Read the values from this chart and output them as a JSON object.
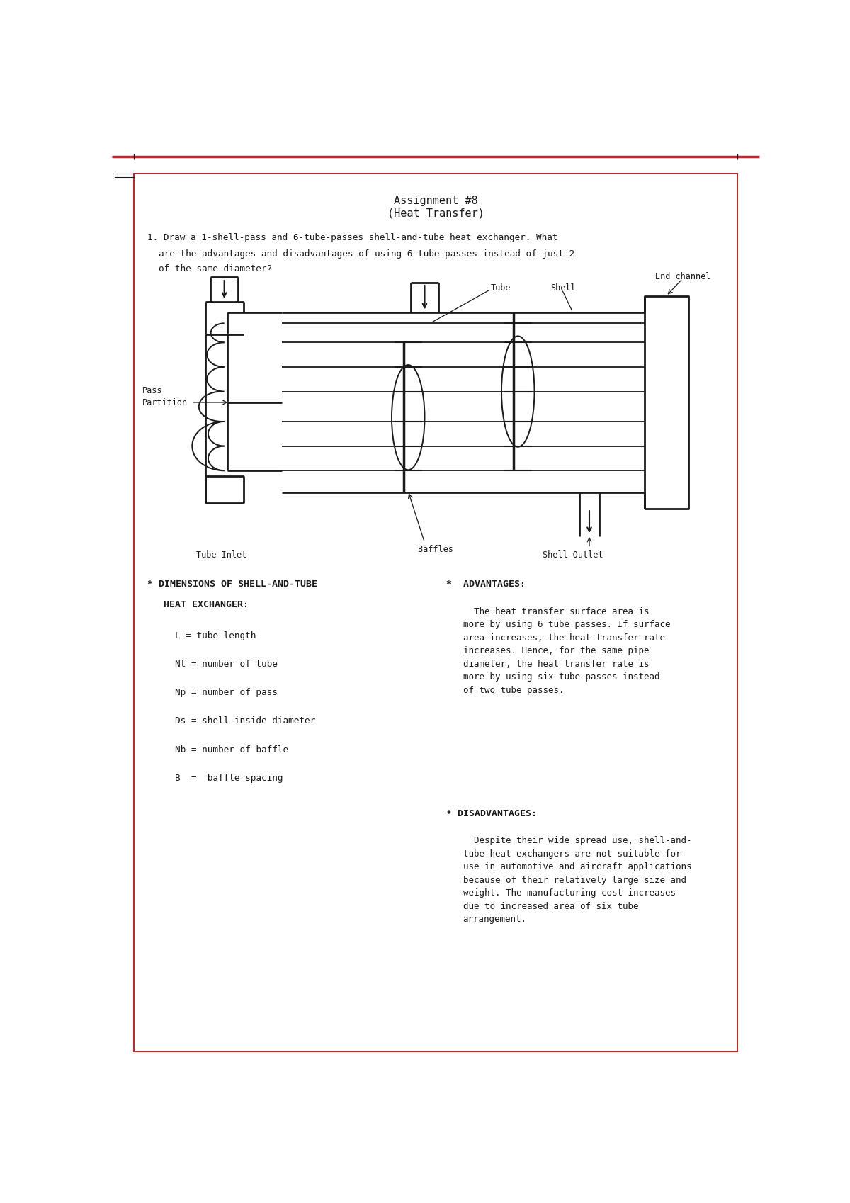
{
  "page_bg": "#ffffff",
  "border_color": "#c0392b",
  "page_width": 12.0,
  "page_height": 16.98,
  "title_line1": "Assignment #8",
  "title_line2": "(Heat Transfer)",
  "question_text": "1. Draw a 1-shell-pass and 6-tube-passes shell-and-tube heat exchanger. What\n   are the advantages and disadvantages of using 6 tube passes instead of just 2\n   of the same diameter?",
  "ink_color": "#1a1a1a",
  "border_red": "#b03030"
}
